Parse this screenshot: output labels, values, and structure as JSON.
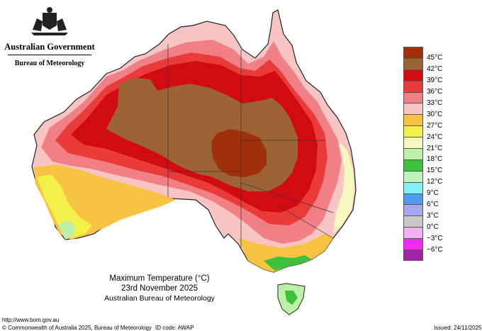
{
  "header": {
    "government": "Australian Government",
    "bureau": "Bureau of Meteorology"
  },
  "title": {
    "line1": "Maximum Temperature (°C)",
    "line2": "23rd November 2025",
    "line3": "Australian Bureau of Meteorology"
  },
  "legend": [
    {
      "label": "45°C",
      "color": "#a0300c"
    },
    {
      "label": "42°C",
      "color": "#9c6434"
    },
    {
      "label": "39°C",
      "color": "#d10b12"
    },
    {
      "label": "36°C",
      "color": "#ea3b3b"
    },
    {
      "label": "33°C",
      "color": "#f07f86"
    },
    {
      "label": "30°C",
      "color": "#f8c4c4"
    },
    {
      "label": "27°C",
      "color": "#f6c442"
    },
    {
      "label": "24°C",
      "color": "#f4f04a"
    },
    {
      "label": "21°C",
      "color": "#f6f8be"
    },
    {
      "label": "18°C",
      "color": "#bdf0a8"
    },
    {
      "label": "15°C",
      "color": "#3ec23e"
    },
    {
      "label": "12°C",
      "color": "#bef4bc"
    },
    {
      "label": "9°C",
      "color": "#84f0f6"
    },
    {
      "label": "6°C",
      "color": "#4e9cf0"
    },
    {
      "label": "3°C",
      "color": "#a8a8ee"
    },
    {
      "label": "0°C",
      "color": "#c8c8c8"
    },
    {
      "label": "−3°C",
      "color": "#f0b2f0"
    },
    {
      "label": "−6°C",
      "color": "#f02cf0"
    },
    {
      "label": "",
      "color": "#a022a8"
    }
  ],
  "footer": {
    "url": "http://www.bom.gov.au",
    "copyright": "© Commonwealth of Australia 2025, Bureau of Meteorology",
    "id_code": "ID code: AWAP",
    "issued": "Issued: 24/11/2025"
  }
}
